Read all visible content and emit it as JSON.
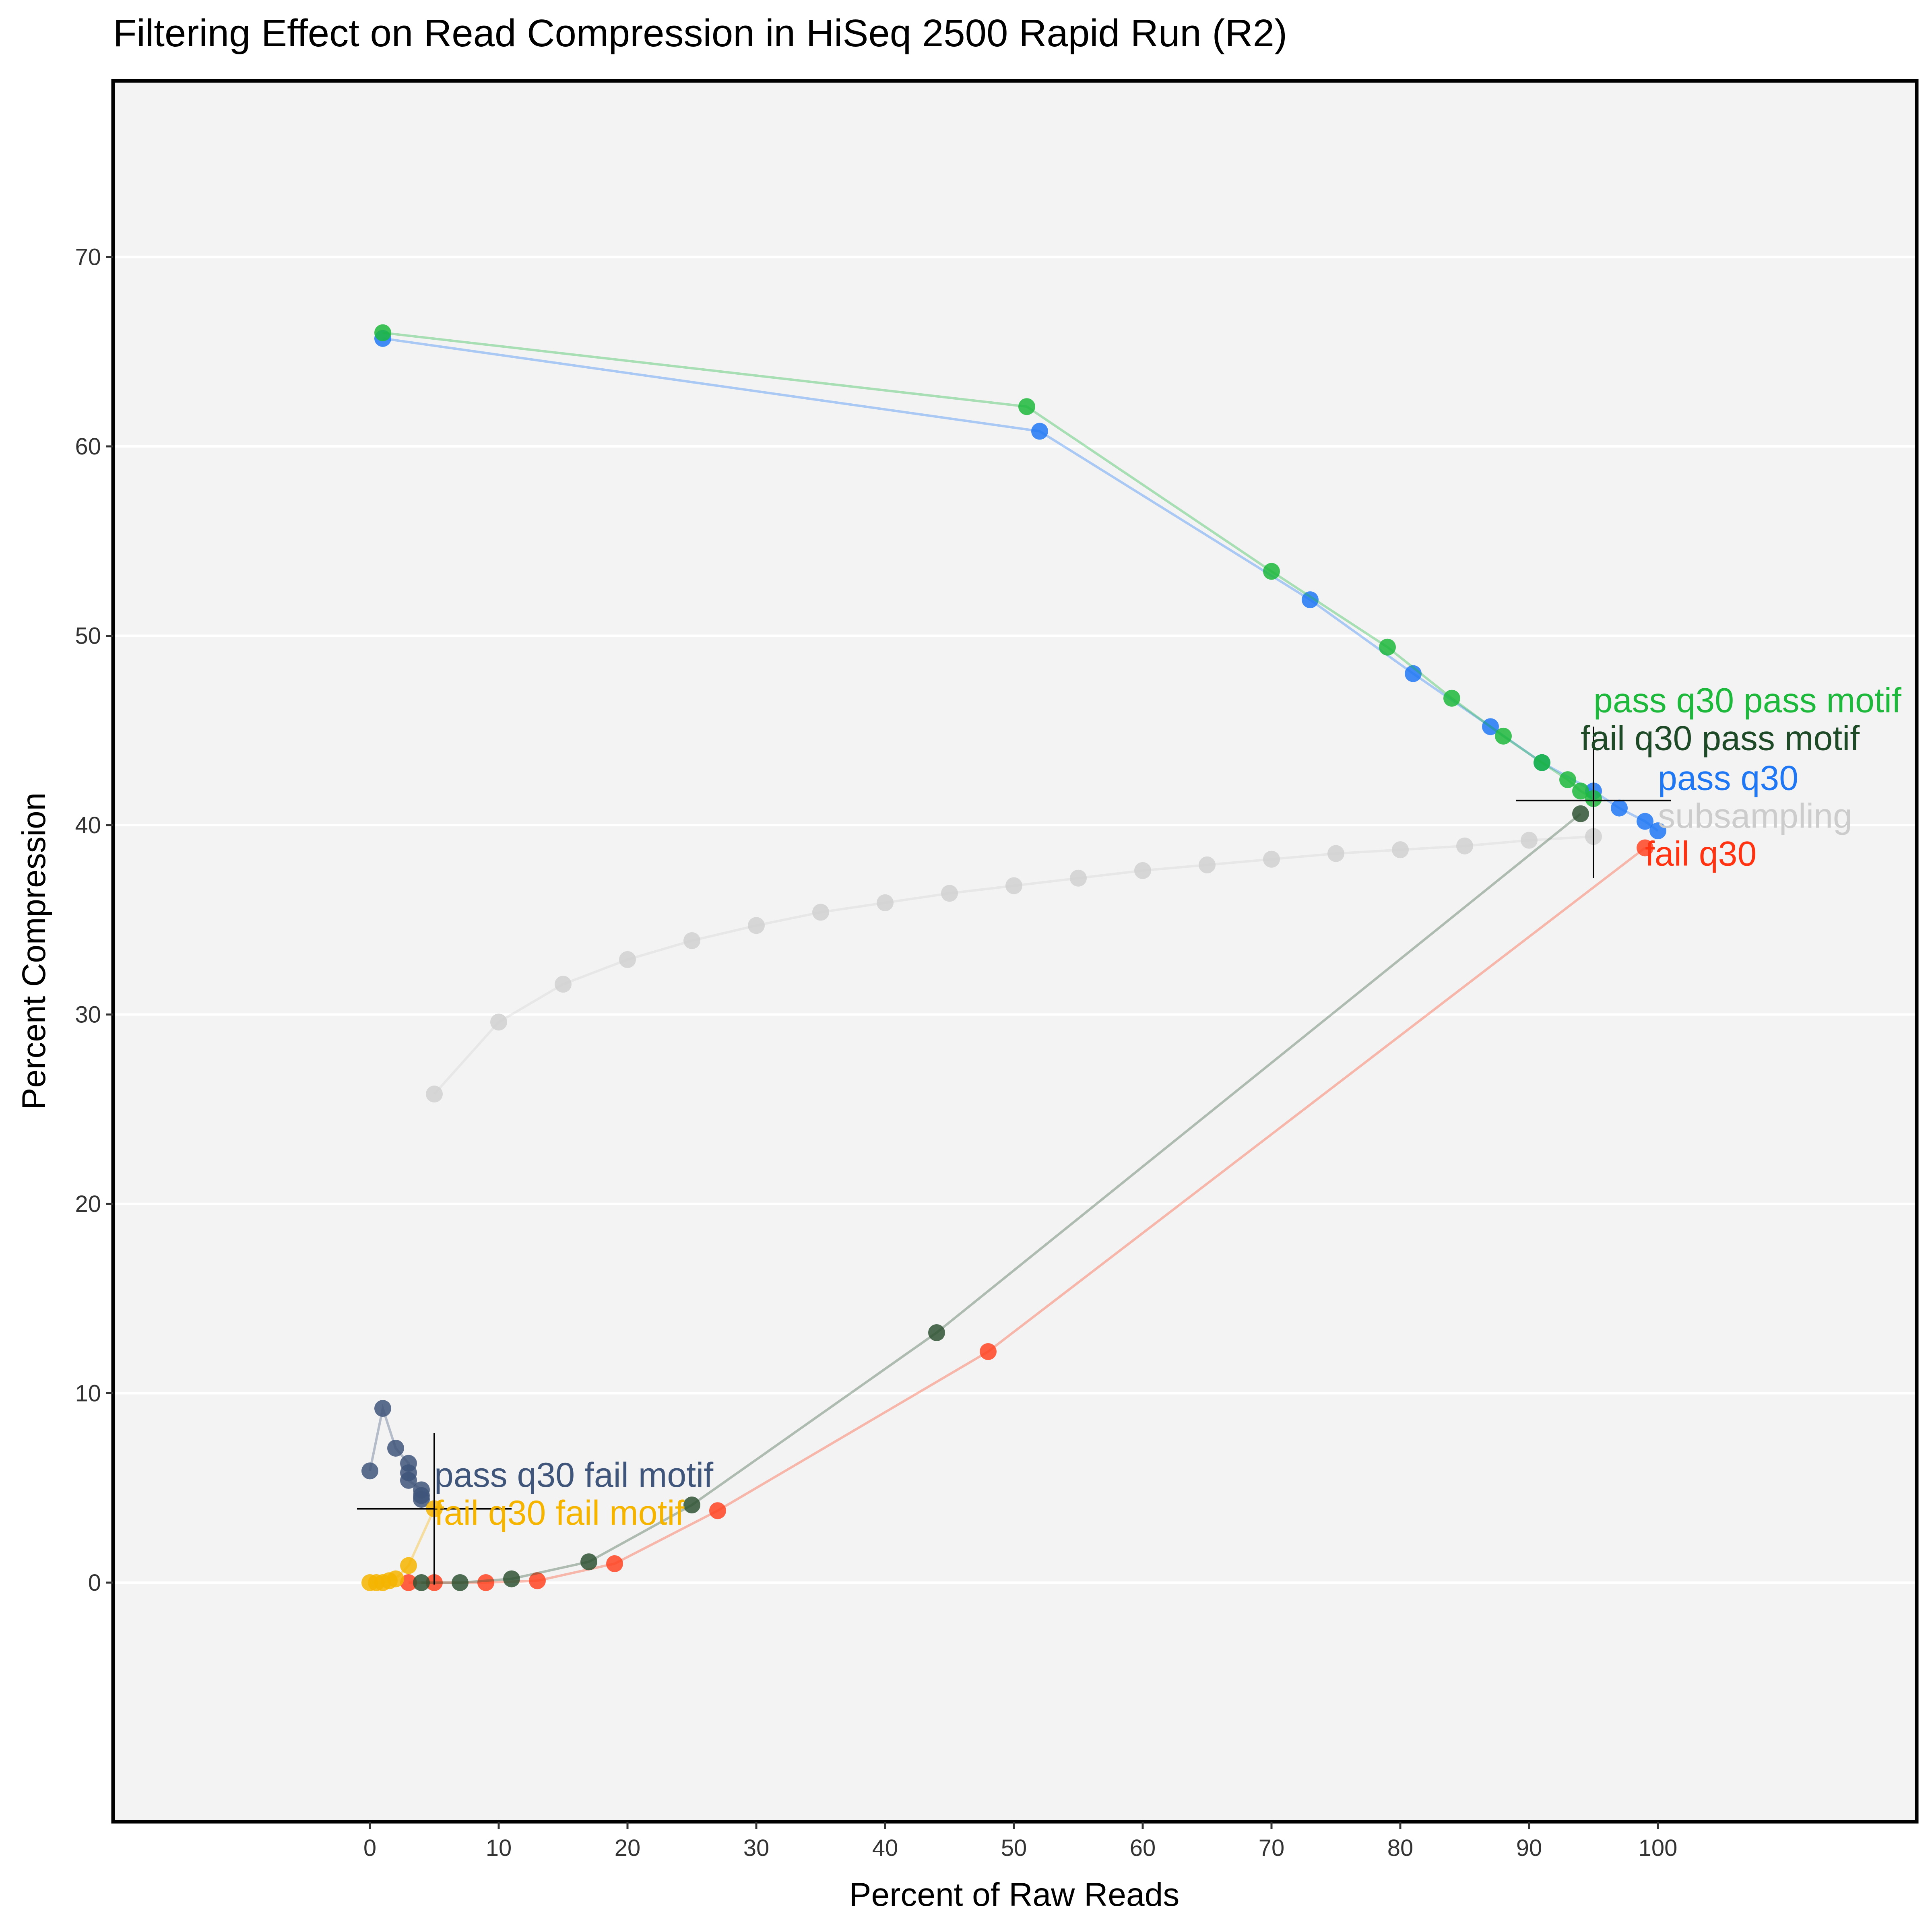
{
  "chart_data": {
    "type": "scatter",
    "title": "Filtering Effect on Read Compression in HiSeq 2500 Rapid Run (R2)",
    "xlabel": "Percent of Raw Reads",
    "ylabel": "Percent Compression",
    "xlim": [
      -20,
      120
    ],
    "ylim": [
      -10.5,
      79
    ],
    "xticks": [
      0,
      10,
      20,
      30,
      40,
      50,
      60,
      70,
      80,
      90,
      100
    ],
    "yticks": [
      0,
      10,
      20,
      30,
      40,
      50,
      60,
      70
    ],
    "grid": "horizontal",
    "legend": "none",
    "colors": {
      "panel": "#f3f3f3",
      "grid": "#ffffff",
      "axis_text": "#333333",
      "crosshair": "#000000"
    },
    "series": [
      {
        "name": "subsampling",
        "color": "#d0d0d0",
        "x": [
          5,
          10,
          15,
          20,
          25,
          30,
          35,
          40,
          45,
          50,
          55,
          60,
          65,
          70,
          75,
          80,
          85,
          90,
          95
        ],
        "y": [
          25.8,
          29.6,
          31.6,
          32.9,
          33.9,
          34.7,
          35.4,
          35.9,
          36.4,
          36.8,
          37.2,
          37.6,
          37.9,
          38.2,
          38.5,
          38.7,
          38.9,
          39.2,
          39.4
        ]
      },
      {
        "name": "pass q30",
        "color": "#1f77f4",
        "x": [
          1,
          52,
          73,
          81,
          87,
          91,
          95,
          97,
          99,
          100
        ],
        "y": [
          65.7,
          60.8,
          51.9,
          48.0,
          45.2,
          43.3,
          41.8,
          40.9,
          40.2,
          39.7
        ]
      },
      {
        "name": "pass q30 pass motif",
        "color": "#1db83c",
        "x": [
          1,
          51,
          70,
          79,
          84,
          88,
          91,
          93,
          94,
          95
        ],
        "y": [
          66.0,
          62.1,
          53.4,
          49.4,
          46.7,
          44.7,
          43.3,
          42.4,
          41.8,
          41.4
        ]
      },
      {
        "name": "fail q30",
        "color": "#ff4422",
        "x": [
          3,
          5,
          9,
          13,
          19,
          27,
          48,
          99
        ],
        "y": [
          0.0,
          0.0,
          0.0,
          0.1,
          1.0,
          3.8,
          12.2,
          38.8
        ]
      },
      {
        "name": "fail q30 pass motif",
        "color": "#2f5233",
        "x": [
          4,
          7,
          11,
          17,
          25,
          44,
          94
        ],
        "y": [
          0.0,
          0.0,
          0.2,
          1.1,
          4.1,
          13.2,
          40.6
        ]
      },
      {
        "name": "pass q30 fail motif",
        "color": "#3f557a",
        "x": [
          0,
          1,
          2,
          3,
          3,
          3,
          4,
          4,
          4
        ],
        "y": [
          5.9,
          9.2,
          7.1,
          6.3,
          5.8,
          5.4,
          4.9,
          4.6,
          4.4
        ]
      },
      {
        "name": "fail q30 fail motif",
        "color": "#f5b400",
        "x": [
          0,
          0.5,
          1,
          1.5,
          2,
          3,
          5
        ],
        "y": [
          0.0,
          0.0,
          0.0,
          0.1,
          0.2,
          0.9,
          3.9
        ]
      }
    ],
    "annotations": [
      {
        "text": "pass q30 pass motif",
        "color": "#1db83c",
        "x": 95,
        "y": 46.6
      },
      {
        "text": "fail q30 pass motif",
        "color": "#1f4a27",
        "x": 94,
        "y": 44.6
      },
      {
        "text": "pass q30",
        "color": "#1f77f4",
        "x": 100,
        "y": 42.5
      },
      {
        "text": "subsampling",
        "color": "#cccccc",
        "x": 100,
        "y": 40.5
      },
      {
        "text": "fail q30",
        "color": "#ff3311",
        "x": 99,
        "y": 38.5
      },
      {
        "text": "pass q30 fail motif",
        "color": "#3f557a",
        "x": 5,
        "y": 5.7
      },
      {
        "text": "fail q30 fail motif",
        "color": "#f5b400",
        "x": 5,
        "y": 3.7
      }
    ],
    "crosshairs": [
      {
        "x": 95,
        "y": 41.3,
        "x_extent": [
          89,
          101
        ],
        "y_extent": [
          37.2,
          45.2
        ]
      },
      {
        "x": 5,
        "y": 3.9,
        "x_extent": [
          -1,
          11
        ],
        "y_extent": [
          -0.1,
          7.9
        ]
      }
    ]
  }
}
